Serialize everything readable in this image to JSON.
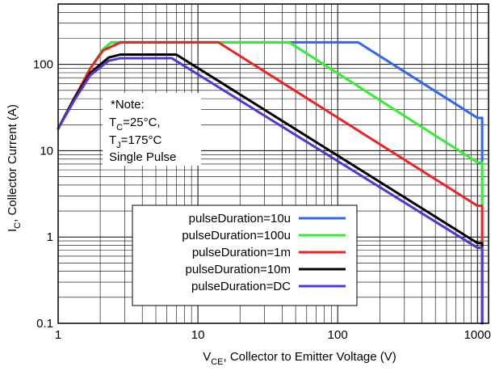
{
  "chart_data": {
    "type": "line",
    "xscale": "log",
    "yscale": "log",
    "xlim": [
      1,
      1200
    ],
    "ylim": [
      0.1,
      500
    ],
    "grid": true,
    "xticks": [
      1,
      10,
      100,
      1000
    ],
    "yticks": [
      0.1,
      1,
      10,
      100
    ],
    "x_tick_labels": [
      "1",
      "10",
      "100",
      "1000"
    ],
    "y_tick_labels": [
      "0.1",
      "1",
      "10",
      "100"
    ],
    "xlabel": {
      "prefix": "V",
      "sub": "CE",
      "rest": ", Collector to Emitter Voltage (V)"
    },
    "ylabel": {
      "prefix": "I",
      "sub": "C",
      "rest": ", Collector Current (A)"
    },
    "note": {
      "line1": "*Note:",
      "line2": {
        "prefix": "T",
        "sub": "C",
        "rest": "=25°C,"
      },
      "line3": {
        "prefix": "T",
        "sub": "J",
        "rest": "=175°C"
      },
      "line4": "Single Pulse"
    },
    "legend_position": "lower-center",
    "series": [
      {
        "name": "pulseDuration=10u",
        "color": "#3366ee",
        "points": [
          [
            1,
            18
          ],
          [
            1.3,
            40
          ],
          [
            1.7,
            90
          ],
          [
            2.1,
            150
          ],
          [
            2.4,
            180
          ],
          [
            140,
            180
          ],
          [
            1000,
            24
          ],
          [
            1080,
            24
          ],
          [
            1080,
            0.1
          ]
        ]
      },
      {
        "name": "pulseDuration=100u",
        "color": "#33ee33",
        "points": [
          [
            1,
            18
          ],
          [
            1.3,
            40
          ],
          [
            1.7,
            90
          ],
          [
            2.1,
            150
          ],
          [
            2.4,
            180
          ],
          [
            45,
            180
          ],
          [
            1000,
            7.3
          ],
          [
            1080,
            7.3
          ],
          [
            1080,
            0.1
          ]
        ]
      },
      {
        "name": "pulseDuration=1m",
        "color": "#ee2222",
        "points": [
          [
            1,
            18
          ],
          [
            1.3,
            40
          ],
          [
            1.7,
            90
          ],
          [
            2.1,
            145
          ],
          [
            2.8,
            180
          ],
          [
            14,
            180
          ],
          [
            1000,
            2.3
          ],
          [
            1080,
            2.3
          ],
          [
            1080,
            0.1
          ]
        ]
      },
      {
        "name": "pulseDuration=10m",
        "color": "#000000",
        "points": [
          [
            1,
            18
          ],
          [
            1.3,
            40
          ],
          [
            1.7,
            80
          ],
          [
            2.3,
            120
          ],
          [
            2.8,
            130
          ],
          [
            7,
            130
          ],
          [
            1000,
            0.85
          ],
          [
            1080,
            0.85
          ],
          [
            1080,
            0.1
          ]
        ]
      },
      {
        "name": "pulseDuration=DC",
        "color": "#5533dd",
        "points": [
          [
            1,
            18
          ],
          [
            1.3,
            38
          ],
          [
            1.7,
            75
          ],
          [
            2.3,
            110
          ],
          [
            2.8,
            118
          ],
          [
            6.5,
            118
          ],
          [
            1000,
            0.75
          ],
          [
            1080,
            0.75
          ],
          [
            1080,
            0.1
          ]
        ]
      }
    ]
  }
}
